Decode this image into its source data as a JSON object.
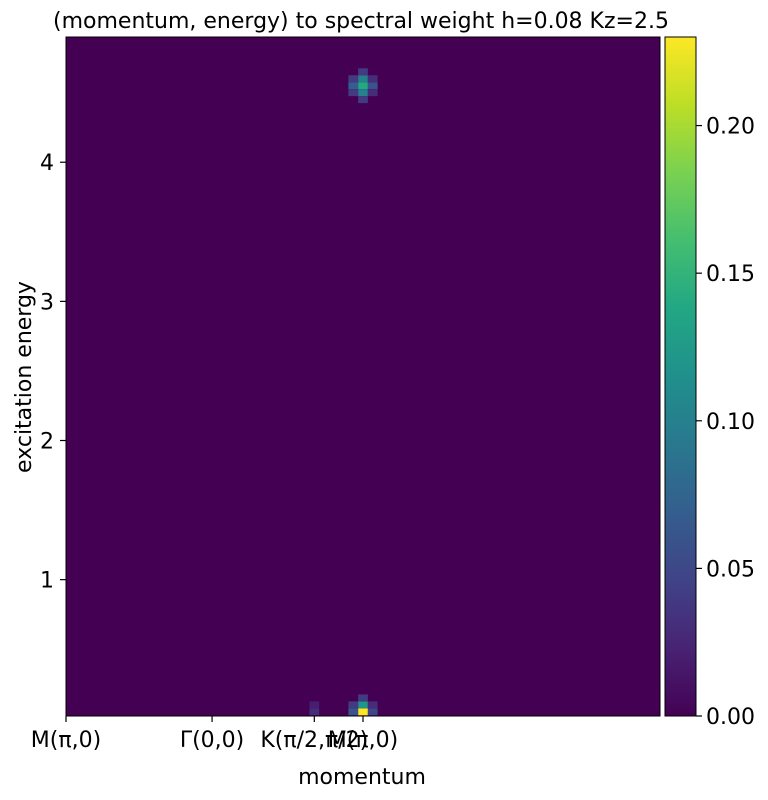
{
  "chart_data": {
    "type": "heatmap",
    "title": "(momentum, energy) to spectral weight h=0.08 Kz=2.5",
    "xlabel": "momentum",
    "ylabel": "excitation energy",
    "colormap": "viridis",
    "x_ticks": [
      {
        "value": 0,
        "label": "M(π,0)"
      },
      {
        "value": 15,
        "label": "Γ(0,0)"
      },
      {
        "value": 25.5,
        "label": "K(π/2,π/2)"
      },
      {
        "value": 30.5,
        "label": "M(π,0)"
      }
    ],
    "xlim": [
      0,
      61
    ],
    "y_ticks": [
      1,
      2,
      3,
      4
    ],
    "ylim": [
      0.02,
      4.9
    ],
    "background_value": 0.0,
    "colorbar": {
      "ticks": [
        0.0,
        0.05,
        0.1,
        0.15,
        0.2
      ],
      "tick_labels": [
        "0.00",
        "0.05",
        "0.10",
        "0.15",
        "0.20"
      ],
      "range": [
        0.0,
        0.23
      ]
    },
    "cell_size": {
      "dx": 1,
      "dy": 0.05
    },
    "hotspots": [
      {
        "x": 30.5,
        "y": 0.05,
        "value": 0.23
      },
      {
        "x": 30.5,
        "y": 0.1,
        "value": 0.12
      },
      {
        "x": 29.5,
        "y": 0.05,
        "value": 0.06
      },
      {
        "x": 31.5,
        "y": 0.05,
        "value": 0.05
      },
      {
        "x": 30.5,
        "y": 0.15,
        "value": 0.04
      },
      {
        "x": 29.5,
        "y": 0.1,
        "value": 0.04
      },
      {
        "x": 31.5,
        "y": 0.1,
        "value": 0.03
      },
      {
        "x": 25.5,
        "y": 0.05,
        "value": 0.03
      },
      {
        "x": 25.5,
        "y": 0.1,
        "value": 0.02
      },
      {
        "x": 30.5,
        "y": 4.55,
        "value": 0.14
      },
      {
        "x": 30.5,
        "y": 4.6,
        "value": 0.1
      },
      {
        "x": 30.5,
        "y": 4.5,
        "value": 0.1
      },
      {
        "x": 29.5,
        "y": 4.55,
        "value": 0.07
      },
      {
        "x": 31.5,
        "y": 4.55,
        "value": 0.06
      },
      {
        "x": 30.5,
        "y": 4.65,
        "value": 0.04
      },
      {
        "x": 30.5,
        "y": 4.45,
        "value": 0.04
      },
      {
        "x": 29.5,
        "y": 4.6,
        "value": 0.04
      },
      {
        "x": 31.5,
        "y": 4.6,
        "value": 0.03
      },
      {
        "x": 29.5,
        "y": 4.5,
        "value": 0.04
      },
      {
        "x": 31.5,
        "y": 4.5,
        "value": 0.03
      }
    ]
  }
}
